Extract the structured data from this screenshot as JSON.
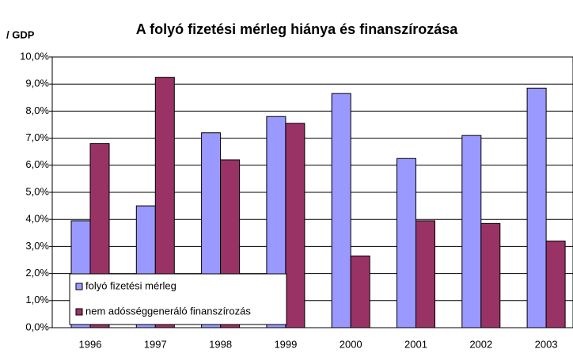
{
  "chart_data": {
    "type": "bar",
    "title": "A folyó fizetési mérleg hiánya és finanszírozása",
    "y_label": "/ GDP",
    "categories": [
      "1996",
      "1997",
      "1998",
      "1999",
      "2000",
      "2001",
      "2002",
      "2003"
    ],
    "series": [
      {
        "name": "folyó fizetési mérleg",
        "color": "#9999ff",
        "values": [
          3.95,
          4.5,
          7.2,
          7.8,
          8.65,
          6.25,
          7.1,
          8.85
        ]
      },
      {
        "name": "nem adósséggeneráló finanszírozás",
        "color": "#993366",
        "values": [
          6.8,
          9.25,
          6.2,
          7.55,
          2.65,
          3.95,
          3.85,
          3.2
        ]
      }
    ],
    "ylim": [
      0,
      10
    ],
    "yticks": [
      {
        "value": 0,
        "label": "0,0%"
      },
      {
        "value": 1,
        "label": "1,0%"
      },
      {
        "value": 2,
        "label": "2,0%"
      },
      {
        "value": 3,
        "label": "3,0%"
      },
      {
        "value": 4,
        "label": "4,0%"
      },
      {
        "value": 5,
        "label": "5,0%"
      },
      {
        "value": 6,
        "label": "6,0%"
      },
      {
        "value": 7,
        "label": "7,0%"
      },
      {
        "value": 8,
        "label": "8,0%"
      },
      {
        "value": 9,
        "label": "9,0%"
      },
      {
        "value": 10,
        "label": "10,0%"
      }
    ],
    "grid": true,
    "legend": "lower left"
  }
}
